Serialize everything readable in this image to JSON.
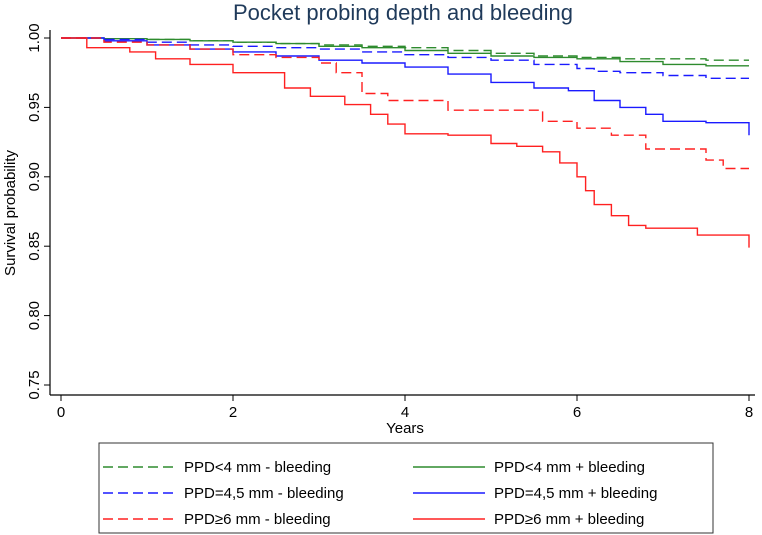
{
  "chart_data": {
    "type": "line",
    "title": "Pocket probing depth and bleeding",
    "xlabel": "Years",
    "ylabel": "Survival probability",
    "xlim": [
      0,
      8
    ],
    "ylim": [
      0.75,
      1.0
    ],
    "xticks": [
      0,
      2,
      4,
      6,
      8
    ],
    "xtick_labels": [
      "0",
      "2",
      "4",
      "6",
      "8"
    ],
    "yticks": [
      0.75,
      0.8,
      0.85,
      0.9,
      0.95,
      1.0
    ],
    "ytick_labels": [
      "0.75",
      "0.80",
      "0.85",
      "0.90",
      "0.95",
      "1.00"
    ],
    "grid": false,
    "legend_position": "bottom",
    "series": [
      {
        "name": "PPD<4 mm - bleeding",
        "color": "#2e8b2e",
        "dashed": true,
        "points": [
          [
            0,
            1.0
          ],
          [
            0.5,
            0.9995
          ],
          [
            1,
            0.999
          ],
          [
            1.5,
            0.998
          ],
          [
            2,
            0.997
          ],
          [
            2.5,
            0.996
          ],
          [
            3,
            0.995
          ],
          [
            3.5,
            0.994
          ],
          [
            4,
            0.993
          ],
          [
            4.5,
            0.991
          ],
          [
            5,
            0.989
          ],
          [
            5.5,
            0.987
          ],
          [
            6,
            0.986
          ],
          [
            6.5,
            0.985
          ],
          [
            7,
            0.985
          ],
          [
            7.5,
            0.984
          ],
          [
            8,
            0.984
          ]
        ]
      },
      {
        "name": "PPD<4 mm + bleeding",
        "color": "#2e8b2e",
        "dashed": false,
        "points": [
          [
            0,
            1.0
          ],
          [
            0.5,
            0.9995
          ],
          [
            1,
            0.999
          ],
          [
            1.5,
            0.998
          ],
          [
            2,
            0.997
          ],
          [
            2.5,
            0.996
          ],
          [
            3,
            0.994
          ],
          [
            3.5,
            0.993
          ],
          [
            4,
            0.991
          ],
          [
            4.5,
            0.989
          ],
          [
            5,
            0.987
          ],
          [
            5.5,
            0.986
          ],
          [
            6,
            0.985
          ],
          [
            6.5,
            0.983
          ],
          [
            7,
            0.981
          ],
          [
            7.5,
            0.98
          ],
          [
            8,
            0.98
          ]
        ]
      },
      {
        "name": "PPD=4,5 mm - bleeding",
        "color": "#1a1aff",
        "dashed": true,
        "points": [
          [
            0,
            1.0
          ],
          [
            0.5,
            0.999
          ],
          [
            1,
            0.997
          ],
          [
            1.5,
            0.995
          ],
          [
            2,
            0.994
          ],
          [
            2.5,
            0.993
          ],
          [
            3,
            0.992
          ],
          [
            3.5,
            0.99
          ],
          [
            4,
            0.988
          ],
          [
            4.5,
            0.986
          ],
          [
            5,
            0.984
          ],
          [
            5.5,
            0.981
          ],
          [
            6,
            0.978
          ],
          [
            6.2,
            0.976
          ],
          [
            6.5,
            0.975
          ],
          [
            7,
            0.973
          ],
          [
            7.5,
            0.971
          ],
          [
            8,
            0.971
          ]
        ]
      },
      {
        "name": "PPD=4,5 mm + bleeding",
        "color": "#1a1aff",
        "dashed": false,
        "points": [
          [
            0,
            1.0
          ],
          [
            0.5,
            0.998
          ],
          [
            1,
            0.995
          ],
          [
            1.5,
            0.992
          ],
          [
            2,
            0.99
          ],
          [
            2.5,
            0.987
          ],
          [
            3,
            0.984
          ],
          [
            3.5,
            0.982
          ],
          [
            4,
            0.979
          ],
          [
            4.5,
            0.974
          ],
          [
            5,
            0.968
          ],
          [
            5.5,
            0.964
          ],
          [
            5.9,
            0.962
          ],
          [
            6.2,
            0.955
          ],
          [
            6.5,
            0.95
          ],
          [
            6.8,
            0.945
          ],
          [
            7,
            0.94
          ],
          [
            7.5,
            0.939
          ],
          [
            7.9,
            0.939
          ],
          [
            8,
            0.93
          ]
        ]
      },
      {
        "name": "PPD≥6 mm - bleeding",
        "color": "#ff2020",
        "dashed": true,
        "points": [
          [
            0,
            1.0
          ],
          [
            0.5,
            0.997
          ],
          [
            1,
            0.995
          ],
          [
            1.5,
            0.992
          ],
          [
            2,
            0.988
          ],
          [
            2.5,
            0.986
          ],
          [
            3,
            0.982
          ],
          [
            3.2,
            0.975
          ],
          [
            3.5,
            0.96
          ],
          [
            3.8,
            0.955
          ],
          [
            4.5,
            0.948
          ],
          [
            5.4,
            0.948
          ],
          [
            5.6,
            0.94
          ],
          [
            6,
            0.935
          ],
          [
            6.4,
            0.93
          ],
          [
            6.8,
            0.92
          ],
          [
            7.2,
            0.92
          ],
          [
            7.5,
            0.912
          ],
          [
            7.7,
            0.906
          ],
          [
            8,
            0.906
          ]
        ]
      },
      {
        "name": "PPD≥6 mm + bleeding",
        "color": "#ff2020",
        "dashed": false,
        "points": [
          [
            0,
            1.0
          ],
          [
            0.3,
            0.993
          ],
          [
            0.8,
            0.99
          ],
          [
            1.1,
            0.985
          ],
          [
            1.5,
            0.981
          ],
          [
            2,
            0.975
          ],
          [
            2.2,
            0.975
          ],
          [
            2.6,
            0.964
          ],
          [
            2.9,
            0.958
          ],
          [
            3.3,
            0.952
          ],
          [
            3.6,
            0.945
          ],
          [
            3.8,
            0.938
          ],
          [
            4,
            0.931
          ],
          [
            4.5,
            0.93
          ],
          [
            5,
            0.924
          ],
          [
            5.3,
            0.922
          ],
          [
            5.6,
            0.918
          ],
          [
            5.8,
            0.91
          ],
          [
            6,
            0.9
          ],
          [
            6.1,
            0.89
          ],
          [
            6.2,
            0.88
          ],
          [
            6.4,
            0.872
          ],
          [
            6.6,
            0.865
          ],
          [
            6.8,
            0.863
          ],
          [
            7.2,
            0.863
          ],
          [
            7.4,
            0.858
          ],
          [
            7.9,
            0.858
          ],
          [
            8,
            0.849
          ]
        ]
      }
    ]
  }
}
